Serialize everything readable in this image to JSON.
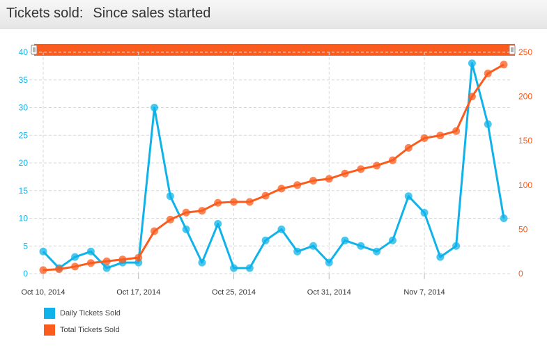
{
  "header": {
    "title": "Tickets sold:",
    "subtitle": "Since sales started"
  },
  "colors": {
    "daily": "#0fb3ea",
    "total": "#fb5b1c",
    "grid": "#d8d8d8",
    "axis_text": "#555555"
  },
  "chart_data": {
    "type": "line",
    "title": "Tickets sold:",
    "subtitle": "Since sales started",
    "x_tick_labels": [
      "Oct 10, 2014",
      "Oct 17, 2014",
      "Oct 25, 2014",
      "Oct 31, 2014",
      "Nov 7, 2014"
    ],
    "x_tick_indices": [
      0,
      6,
      12,
      18,
      24
    ],
    "y_left": {
      "min": 0,
      "max": 40,
      "ticks": [
        0,
        5,
        10,
        15,
        20,
        25,
        30,
        35,
        40
      ]
    },
    "y_right": {
      "min": 0,
      "max": 250,
      "ticks": [
        0,
        50,
        100,
        150,
        200,
        250
      ]
    },
    "series": [
      {
        "name": "Daily Tickets Sold",
        "axis": "left",
        "values": [
          4,
          1,
          3,
          4,
          1,
          2,
          2,
          30,
          14,
          8,
          2,
          9,
          1,
          1,
          6,
          8,
          4,
          5,
          2,
          6,
          5,
          4,
          6,
          14,
          11,
          3,
          5,
          38,
          27,
          10
        ]
      },
      {
        "name": "Total Tickets Sold",
        "axis": "right",
        "values": [
          4,
          5,
          8,
          12,
          14,
          16,
          18,
          48,
          61,
          69,
          71,
          80,
          81,
          81,
          88,
          96,
          100,
          105,
          107,
          113,
          118,
          122,
          128,
          142,
          153,
          156,
          161,
          200,
          226,
          236
        ]
      }
    ],
    "grid": true,
    "legend_position": "bottom-left"
  }
}
